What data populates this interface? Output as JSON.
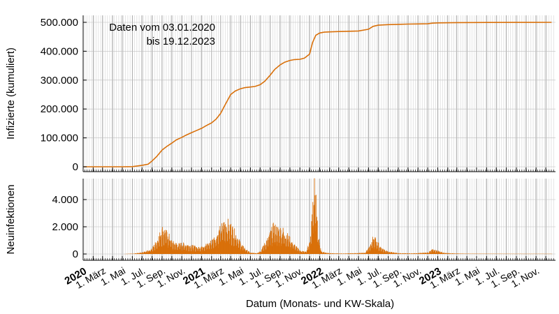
{
  "chart_data": [
    {
      "type": "line",
      "panel": "top",
      "ylabel": "Infizierte (kumuliert)",
      "ylim": [
        0,
        520000
      ],
      "yticks": [
        0,
        100000,
        200000,
        300000,
        400000,
        500000
      ],
      "ytick_labels": [
        "0",
        "100.000",
        "200.000",
        "300.000",
        "400.000",
        "500.000"
      ],
      "annotation": [
        "Daten vom 03.01.2020",
        "bis 19.12.2023"
      ],
      "grid": true,
      "color": "#d9700a",
      "series": [
        {
          "x": [
            "2020-01-03",
            "2020-03-01",
            "2020-05-01",
            "2020-06-01",
            "2020-07-01",
            "2020-07-20",
            "2020-08-01",
            "2020-08-15",
            "2020-09-01",
            "2020-09-15",
            "2020-10-01",
            "2020-10-15",
            "2020-11-01",
            "2020-11-15",
            "2020-12-01",
            "2020-12-15",
            "2021-01-01",
            "2021-01-15",
            "2021-02-01",
            "2021-02-15",
            "2021-03-01",
            "2021-03-15",
            "2021-04-01",
            "2021-04-15",
            "2021-05-01",
            "2021-05-15",
            "2021-06-01",
            "2021-06-15",
            "2021-07-01",
            "2021-07-15",
            "2021-08-01",
            "2021-08-15",
            "2021-09-01",
            "2021-09-15",
            "2021-10-01",
            "2021-10-15",
            "2021-11-01",
            "2021-11-15",
            "2021-12-01",
            "2021-12-10",
            "2021-12-20",
            "2022-01-01",
            "2022-01-15",
            "2022-02-01",
            "2022-03-01",
            "2022-04-01",
            "2022-05-01",
            "2022-06-01",
            "2022-06-15",
            "2022-07-01",
            "2022-08-01",
            "2022-09-01",
            "2022-10-01",
            "2022-11-01",
            "2022-12-01",
            "2022-12-15",
            "2023-01-01",
            "2023-03-01",
            "2023-06-01",
            "2023-09-01",
            "2023-12-19"
          ],
          "values": [
            0,
            0,
            0,
            500,
            5000,
            9000,
            20000,
            35000,
            58000,
            70000,
            82000,
            93000,
            102000,
            110000,
            118000,
            125000,
            133000,
            142000,
            152000,
            165000,
            185000,
            215000,
            250000,
            262000,
            270000,
            274000,
            276000,
            278000,
            284000,
            296000,
            317000,
            337000,
            353000,
            362000,
            368000,
            371000,
            372000,
            376000,
            390000,
            430000,
            455000,
            463000,
            466000,
            467000,
            468000,
            469000,
            470000,
            476000,
            486000,
            490000,
            492000,
            493000,
            494000,
            494500,
            495000,
            497000,
            498000,
            499000,
            499500,
            499700,
            500000
          ]
        }
      ]
    },
    {
      "type": "bar",
      "panel": "bottom",
      "ylabel": "Neuinfektionen",
      "ylim": [
        0,
        5500
      ],
      "yticks": [
        0,
        2000,
        4000
      ],
      "ytick_labels": [
        "0",
        "2.000",
        "4.000"
      ],
      "grid": true,
      "color": "#d9700a",
      "series": [
        {
          "x": [
            "2020-01-03",
            "2020-05-01",
            "2020-06-01",
            "2020-07-01",
            "2020-07-20",
            "2020-08-01",
            "2020-08-15",
            "2020-09-01",
            "2020-09-20",
            "2020-10-01",
            "2020-10-20",
            "2020-11-01",
            "2020-12-01",
            "2020-12-20",
            "2021-01-01",
            "2021-01-20",
            "2021-02-01",
            "2021-02-20",
            "2021-03-01",
            "2021-03-10",
            "2021-03-20",
            "2021-04-01",
            "2021-04-15",
            "2021-05-01",
            "2021-05-20",
            "2021-06-01",
            "2021-06-20",
            "2021-07-01",
            "2021-07-15",
            "2021-08-01",
            "2021-08-10",
            "2021-08-25",
            "2021-09-10",
            "2021-09-25",
            "2021-10-10",
            "2021-11-01",
            "2021-11-20",
            "2021-12-01",
            "2021-12-08",
            "2021-12-14",
            "2021-12-20",
            "2021-12-27",
            "2022-01-05",
            "2022-01-20",
            "2022-02-15",
            "2022-03-15",
            "2022-04-15",
            "2022-05-20",
            "2022-06-05",
            "2022-06-15",
            "2022-06-25",
            "2022-07-10",
            "2022-08-01",
            "2022-09-01",
            "2022-10-01",
            "2022-11-01",
            "2022-12-01",
            "2022-12-15",
            "2023-01-01",
            "2023-01-20",
            "2023-02-15",
            "2023-04-01",
            "2023-06-01",
            "2023-09-01",
            "2023-12-19"
          ],
          "values": [
            0,
            0,
            20,
            100,
            250,
            400,
            900,
            1700,
            1300,
            800,
            650,
            700,
            550,
            450,
            550,
            700,
            900,
            1400,
            1800,
            2050,
            2150,
            1900,
            1400,
            700,
            250,
            80,
            60,
            200,
            700,
            1400,
            1850,
            1700,
            1600,
            1200,
            700,
            220,
            150,
            900,
            2400,
            5100,
            3900,
            1200,
            200,
            70,
            40,
            30,
            50,
            80,
            500,
            1200,
            900,
            350,
            150,
            60,
            40,
            60,
            100,
            300,
            220,
            80,
            40,
            20,
            15,
            10,
            10
          ]
        }
      ]
    }
  ],
  "xaxis": {
    "label": "Datum (Monats- und KW-Skala)",
    "start": "2020-01-01",
    "end": "2023-12-31",
    "ticks": [
      {
        "date": "2020-01-01",
        "label": "2020",
        "bold": true
      },
      {
        "date": "2020-03-01",
        "label": "1. März"
      },
      {
        "date": "2020-05-01",
        "label": "1. Mai"
      },
      {
        "date": "2020-07-01",
        "label": "1. Jul."
      },
      {
        "date": "2020-09-01",
        "label": "1. Sep."
      },
      {
        "date": "2020-11-01",
        "label": "1. Nov."
      },
      {
        "date": "2021-01-01",
        "label": "2021",
        "bold": true
      },
      {
        "date": "2021-03-01",
        "label": "1. März"
      },
      {
        "date": "2021-05-01",
        "label": "1. Mai"
      },
      {
        "date": "2021-07-01",
        "label": "1. Jul."
      },
      {
        "date": "2021-09-01",
        "label": "1. Sep."
      },
      {
        "date": "2021-11-01",
        "label": "1. Nov."
      },
      {
        "date": "2022-01-01",
        "label": "2022",
        "bold": true
      },
      {
        "date": "2022-03-01",
        "label": "1. März"
      },
      {
        "date": "2022-05-01",
        "label": "1. Mai"
      },
      {
        "date": "2022-07-01",
        "label": "1. Jul."
      },
      {
        "date": "2022-09-01",
        "label": "1. Sep."
      },
      {
        "date": "2022-11-01",
        "label": "1. Nov."
      },
      {
        "date": "2023-01-01",
        "label": "2023",
        "bold": true
      },
      {
        "date": "2023-03-01",
        "label": "1. März"
      },
      {
        "date": "2023-05-01",
        "label": "1. Mai"
      },
      {
        "date": "2023-07-01",
        "label": "1. Jul."
      },
      {
        "date": "2023-09-01",
        "label": "1. Sep."
      },
      {
        "date": "2023-11-01",
        "label": "1. Nov."
      }
    ]
  }
}
